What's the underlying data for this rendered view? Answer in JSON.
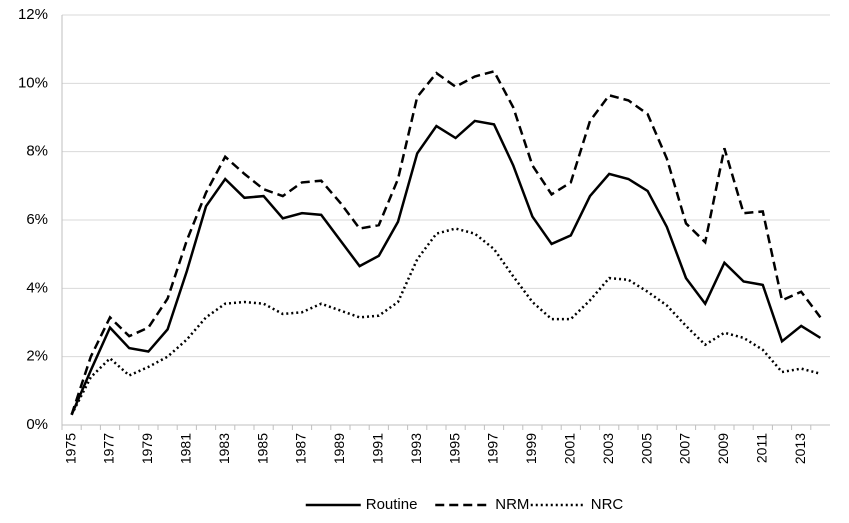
{
  "chart_data": {
    "type": "line",
    "categories": [
      "1975",
      null,
      "1977",
      null,
      "1979",
      null,
      "1981",
      null,
      "1983",
      null,
      "1985",
      null,
      "1987",
      null,
      "1989",
      null,
      "1991",
      null,
      "1993",
      null,
      "1995",
      null,
      "1997",
      null,
      "1999",
      null,
      "2001",
      null,
      "2003",
      null,
      "2005",
      null,
      "2007",
      null,
      "2009",
      null,
      "2011",
      null,
      "2013",
      null
    ],
    "series": [
      {
        "name": "Routine",
        "color": "#000000",
        "dash": "solid",
        "values": [
          0.3,
          1.6,
          2.85,
          2.25,
          2.15,
          2.8,
          4.5,
          6.4,
          7.2,
          6.65,
          6.7,
          6.05,
          6.2,
          6.15,
          5.4,
          4.65,
          4.95,
          5.95,
          7.95,
          8.75,
          8.4,
          8.9,
          8.8,
          7.6,
          6.1,
          5.3,
          5.55,
          6.7,
          7.35,
          7.2,
          6.85,
          5.8,
          4.3,
          3.55,
          4.75,
          4.2,
          4.1,
          2.45,
          2.9,
          2.55
        ]
      },
      {
        "name": "NRM",
        "color": "#000000",
        "dash": "dashed",
        "values": [
          0.3,
          2.0,
          3.15,
          2.6,
          2.85,
          3.7,
          5.4,
          6.8,
          7.85,
          7.35,
          6.9,
          6.7,
          7.1,
          7.15,
          6.5,
          5.75,
          5.85,
          7.2,
          9.6,
          10.3,
          9.9,
          10.2,
          10.35,
          9.3,
          7.6,
          6.75,
          7.1,
          8.9,
          9.65,
          9.5,
          9.1,
          7.8,
          5.9,
          5.35,
          8.1,
          6.2,
          6.25,
          3.65,
          3.9,
          3.15
        ]
      },
      {
        "name": "NRC",
        "color": "#000000",
        "dash": "dotted",
        "values": [
          0.3,
          1.4,
          1.95,
          1.45,
          1.7,
          2.0,
          2.5,
          3.15,
          3.55,
          3.6,
          3.55,
          3.25,
          3.3,
          3.55,
          3.35,
          3.15,
          3.2,
          3.6,
          4.85,
          5.6,
          5.75,
          5.6,
          5.15,
          4.35,
          3.6,
          3.1,
          3.1,
          3.65,
          4.3,
          4.25,
          3.9,
          3.5,
          2.9,
          2.35,
          2.7,
          2.55,
          2.2,
          1.55,
          1.65,
          1.5
        ]
      }
    ],
    "ylim": [
      0,
      12
    ],
    "yticks": [
      {
        "value": 0,
        "label": "0%"
      },
      {
        "value": 2,
        "label": "2%"
      },
      {
        "value": 4,
        "label": "4%"
      },
      {
        "value": 6,
        "label": "6%"
      },
      {
        "value": 8,
        "label": "8%"
      },
      {
        "value": 10,
        "label": "10%"
      },
      {
        "value": 12,
        "label": "12%"
      }
    ],
    "grid": true,
    "legend": "bottom"
  }
}
